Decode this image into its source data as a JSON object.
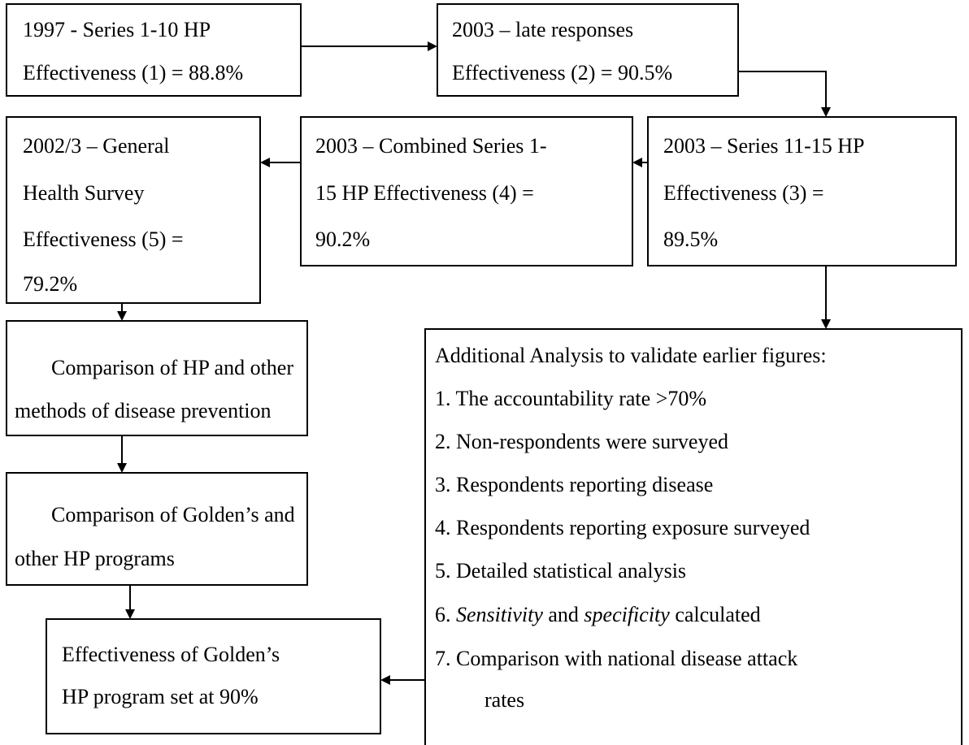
{
  "nodes": [
    {
      "lines": [
        "1997 - Series 1-10  HP",
        "Effectiveness (1) = 88.8%"
      ]
    },
    {
      "lines": [
        "2003 – late responses",
        "Effectiveness (2) = 90.5%"
      ]
    },
    {
      "lines": [
        "2003 – Series 11-15 HP",
        "Effectiveness (3) =",
        "89.5%"
      ]
    },
    {
      "lines": [
        "2003 – Combined Series 1-",
        "15 HP  Effectiveness (4) =",
        "90.2%"
      ]
    },
    {
      "lines": [
        "2002/3 – General",
        "Health Survey",
        "Effectiveness (5) =",
        "79.2%"
      ]
    },
    {
      "lines": [
        "Comparison of HP and other",
        "methods of disease prevention"
      ]
    },
    {
      "lines": [
        "Comparison of Golden’s and",
        "other HP programs"
      ]
    },
    {
      "lines": [
        "Effectiveness of Golden’s",
        "HP program set at 90%"
      ]
    },
    {
      "heading": "Additional Analysis to validate earlier figures:",
      "items": [
        "1. The accountability rate >70%",
        "2. Non-respondents were surveyed",
        "3. Respondents reporting disease",
        "4. Respondents reporting exposure surveyed",
        "5. Detailed statistical analysis",
        [
          "6. ",
          "Sensitivity",
          " and ",
          "specificity",
          " calculated"
        ],
        "7. Comparison with national disease attack",
        "rates"
      ]
    }
  ]
}
